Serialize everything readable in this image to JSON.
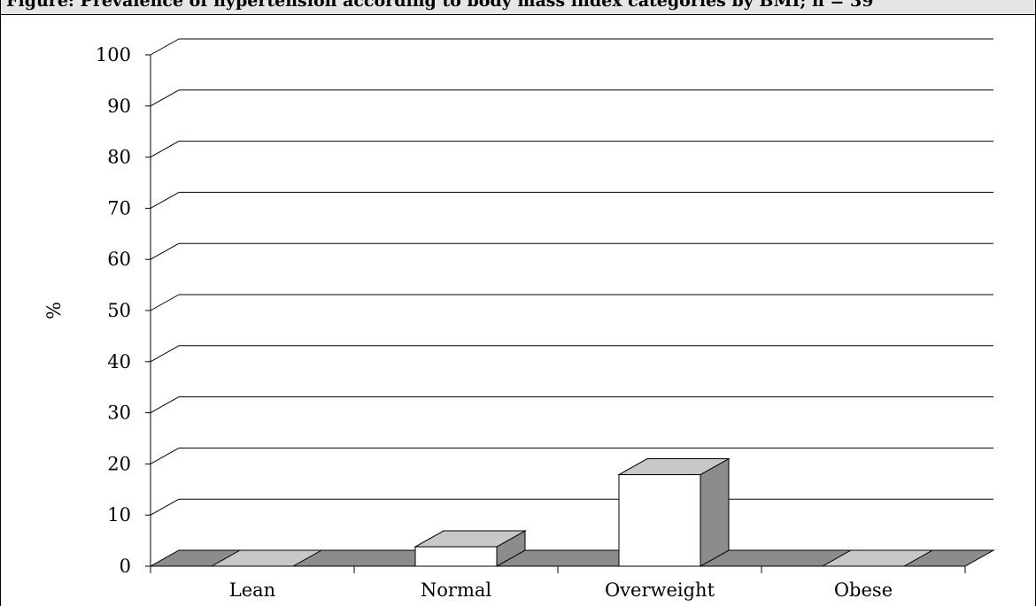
{
  "figure": {
    "caption": "Figure: Prevalence of hypertension according to body mass index categories by BMI; n = 39"
  },
  "chart_data": {
    "type": "bar",
    "style": "3d",
    "categories": [
      "Lean",
      "Normal",
      "Overweight",
      "Obese"
    ],
    "values": [
      0,
      3.8,
      17.9,
      0
    ],
    "ylabel": "%",
    "xlabel": "",
    "ylim": [
      0,
      100
    ],
    "yticks": [
      0,
      10,
      20,
      30,
      40,
      50,
      60,
      70,
      80,
      90,
      100
    ],
    "grid": true,
    "legend": "none",
    "colors": {
      "bar_front": "#ffffff",
      "bar_top": "#c8c8c8",
      "bar_side": "#8c8c8c",
      "floor_dark": "#8c8c8c",
      "floor_light": "#c8c8c8"
    }
  }
}
